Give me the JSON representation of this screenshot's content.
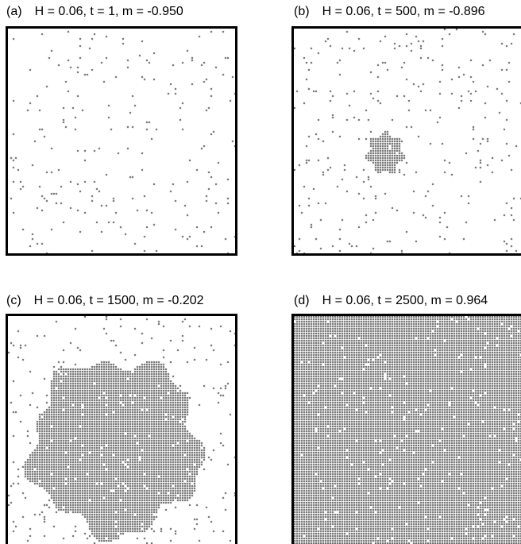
{
  "figure": {
    "panels": [
      {
        "label": "(a)",
        "title": "H = 0.06, t = 1, m = -0.950",
        "H": 0.06,
        "t": 1,
        "m": -0.95
      },
      {
        "label": "(b)",
        "title": "H = 0.06, t = 500, m = -0.896",
        "H": 0.06,
        "t": 500,
        "m": -0.896
      },
      {
        "label": "(c)",
        "title": "H = 0.06, t = 1500, m = -0.202",
        "H": 0.06,
        "t": 1500,
        "m": -0.202
      },
      {
        "label": "(d)",
        "title": "H = 0.06, t = 2500, m = 0.964",
        "H": 0.06,
        "t": 2500,
        "m": 0.964
      }
    ],
    "colors": {
      "spin_up": "#555555",
      "spin_down": "#ffffff",
      "frame": "#000000"
    }
  }
}
